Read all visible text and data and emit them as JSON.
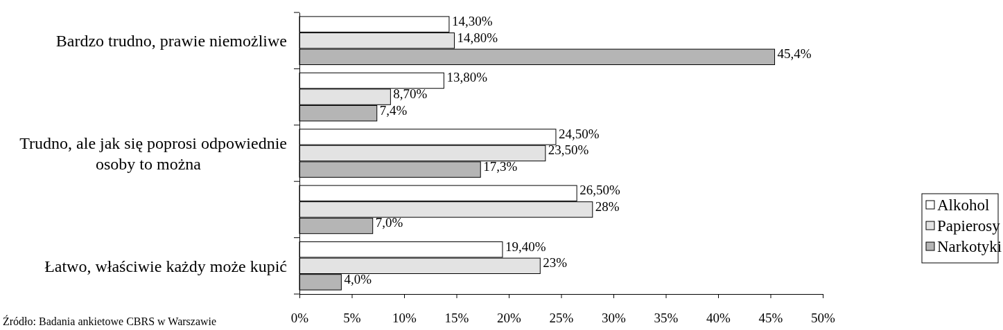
{
  "chart_data": {
    "type": "bar",
    "orientation": "horizontal",
    "categories": [
      "Bardzo trudno, prawie niemożliwe",
      null,
      "Trudno, ale jak się poprosi odpowiednie osoby to można",
      null,
      "Łatwo, właściwie każdy może kupić"
    ],
    "series": [
      {
        "name": "Alkohol",
        "color": "#ffffff",
        "values": [
          14.3,
          13.8,
          24.5,
          26.5,
          19.4
        ],
        "value_labels": [
          "14,30%",
          "13,80%",
          "24,50%",
          "26,50%",
          "19,40%"
        ]
      },
      {
        "name": "Papierosy",
        "color": "#e3e3e3",
        "values": [
          14.8,
          8.7,
          23.5,
          28,
          23
        ],
        "value_labels": [
          "14,80%",
          "8,70%",
          "23,50%",
          "28%",
          "23%"
        ]
      },
      {
        "name": "Narkotyki",
        "color": "#b5b5b5",
        "values": [
          45.4,
          7.4,
          17.3,
          7.0,
          4.0
        ],
        "value_labels": [
          "45,4%",
          "7,4%",
          "17,3%",
          "7,0%",
          "4,0%"
        ]
      }
    ],
    "xlim": [
      0,
      50
    ],
    "xticks": [
      {
        "value": 0,
        "label": "0%"
      },
      {
        "value": 5,
        "label": "5%"
      },
      {
        "value": 10,
        "label": "10%"
      },
      {
        "value": 15,
        "label": "15%"
      },
      {
        "value": 20,
        "label": "20%"
      },
      {
        "value": 25,
        "label": "25%"
      },
      {
        "value": 30,
        "label": "30%"
      },
      {
        "value": 35,
        "label": "35%"
      },
      {
        "value": 40,
        "label": "40%"
      },
      {
        "value": 45,
        "label": "45%"
      },
      {
        "value": 50,
        "label": "50%"
      }
    ],
    "legend": "right",
    "annotations": [
      "Źródło: Badania ankietowe CBRS w Warszawie"
    ]
  }
}
